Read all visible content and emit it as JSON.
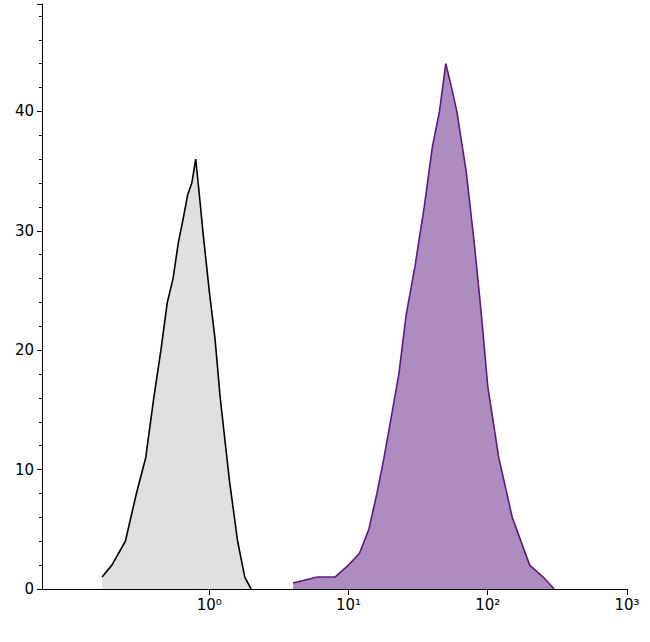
{
  "chart_data": {
    "type": "area",
    "log": "x",
    "xlim": [
      0.063,
      1000
    ],
    "xticks": [
      {
        "value": 1,
        "label": "10⁰"
      },
      {
        "value": 10,
        "label": "10¹"
      },
      {
        "value": 100,
        "label": "10²"
      },
      {
        "value": 1000,
        "label": "10³"
      }
    ],
    "ylim": [
      0,
      49
    ],
    "yticks": [
      0,
      10,
      20,
      30,
      40
    ],
    "grid": false,
    "series": [
      {
        "color": "#000000",
        "x": [
          0.17,
          0.2,
          0.25,
          0.3,
          0.35,
          0.4,
          0.45,
          0.5,
          0.55,
          0.6,
          0.65,
          0.7,
          0.75,
          0.8,
          0.85,
          0.9,
          1.0,
          1.1,
          1.2,
          1.4,
          1.6,
          1.8,
          2.0
        ],
        "values": [
          1,
          2,
          4,
          8,
          11,
          16,
          20,
          24,
          26,
          29,
          31,
          33,
          34,
          36,
          33,
          30,
          25,
          21,
          16,
          9,
          4,
          1,
          0
        ]
      },
      {
        "color": "#5b1a80",
        "x": [
          4,
          6,
          8,
          10,
          12,
          14,
          16,
          18,
          20,
          23,
          26,
          30,
          35,
          40,
          45,
          50,
          55,
          60,
          70,
          80,
          90,
          100,
          120,
          150,
          200,
          250,
          300
        ],
        "values": [
          0.5,
          1,
          1,
          2,
          3,
          5,
          8,
          11,
          14,
          18,
          23,
          27,
          32,
          37,
          40,
          44,
          42,
          40,
          35,
          29,
          23,
          17,
          11,
          6,
          2,
          1,
          0
        ]
      }
    ]
  }
}
